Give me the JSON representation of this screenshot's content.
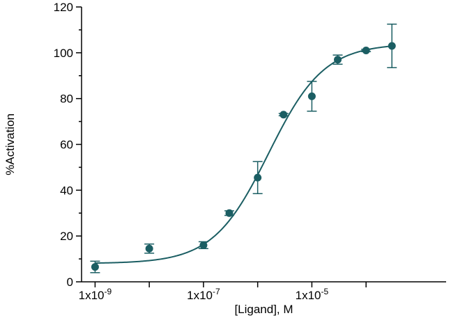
{
  "chart_data": {
    "type": "scatter",
    "title": "",
    "xlabel": "[Ligand], M",
    "ylabel": "%Activation",
    "x_scale": "log",
    "xlim": [
      5e-10,
      0.003
    ],
    "ylim": [
      0,
      120
    ],
    "y_ticks": [
      0,
      20,
      40,
      60,
      80,
      100,
      120
    ],
    "x_ticks": [
      1e-09,
      1e-08,
      1e-07,
      1e-06,
      1e-05,
      0.0001
    ],
    "x_tick_labels": [
      {
        "x": 1e-09,
        "mantissa": "1x10",
        "exponent": "-9"
      },
      {
        "x": 1e-07,
        "mantissa": "1x10",
        "exponent": "-7"
      },
      {
        "x": 1e-05,
        "mantissa": "1x10",
        "exponent": "-5"
      }
    ],
    "grid": false,
    "color": "#1b5e63",
    "series": [
      {
        "points": [
          {
            "x": 1e-09,
            "y": 6.5,
            "err": 2.5
          },
          {
            "x": 1e-08,
            "y": 14.5,
            "err": 2
          },
          {
            "x": 1e-07,
            "y": 16,
            "err": 1.5
          },
          {
            "x": 3e-07,
            "y": 30,
            "err": 1
          },
          {
            "x": 1e-06,
            "y": 45.5,
            "err": 7
          },
          {
            "x": 3e-06,
            "y": 73,
            "err": 0.5
          },
          {
            "x": 1e-05,
            "y": 81,
            "err": 6.5
          },
          {
            "x": 3e-05,
            "y": 97,
            "err": 2
          },
          {
            "x": 0.0001,
            "y": 101,
            "err": 0.5
          },
          {
            "x": 0.0003,
            "y": 103,
            "err": 9.5
          }
        ]
      }
    ],
    "fit": {
      "model": "sigmoidal dose-response",
      "bottom": 8,
      "top": 104,
      "log_ec50": -5.8,
      "hill": 0.85,
      "x_range": [
        1e-09,
        0.0003
      ]
    }
  }
}
